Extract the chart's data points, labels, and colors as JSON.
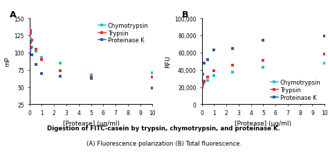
{
  "panel_A": {
    "title": "A",
    "xlabel": "[Protease] (μg/ml)",
    "ylabel": "mP",
    "xlim": [
      0,
      10
    ],
    "ylim": [
      25,
      150
    ],
    "yticks": [
      25,
      50,
      75,
      100,
      125,
      150
    ],
    "xticks": [
      0,
      1,
      2,
      3,
      4,
      5,
      6,
      7,
      8,
      9,
      10
    ],
    "series": {
      "Chymotrypsin": {
        "color": "#2abfbf",
        "x": [
          0.0,
          0.05,
          0.1,
          0.2,
          0.5,
          1.0,
          2.5,
          5.0,
          10.0
        ],
        "y": [
          110,
          120,
          115,
          108,
          102,
          93,
          85,
          68,
          71
        ]
      },
      "Trypsin": {
        "color": "#e8312a",
        "x": [
          0.0,
          0.05,
          0.1,
          0.2,
          0.5,
          1.0,
          2.5,
          5.0,
          10.0
        ],
        "y": [
          110,
          132,
          128,
          118,
          105,
          90,
          74,
          65,
          65
        ]
      },
      "Proteinase K": {
        "color": "#2c5aa0",
        "x": [
          0.0,
          0.05,
          0.1,
          0.2,
          0.5,
          1.0,
          2.5,
          5.0,
          10.0
        ],
        "y": [
          102,
          115,
          107,
          97,
          83,
          70,
          66,
          63,
          49
        ]
      }
    }
  },
  "panel_B": {
    "title": "B",
    "xlabel": "[Protease] (μg/ml)",
    "ylabel": "RFU",
    "xlim": [
      0,
      10
    ],
    "ylim": [
      0,
      100000
    ],
    "yticks": [
      0,
      20000,
      40000,
      60000,
      80000,
      100000
    ],
    "ytick_labels": [
      "0",
      "20,000",
      "40,000",
      "60,000",
      "80,000",
      "100,000"
    ],
    "xticks": [
      0,
      1,
      2,
      3,
      4,
      5,
      6,
      7,
      8,
      9,
      10
    ],
    "series": {
      "Chymotrypsin": {
        "color": "#2abfbf",
        "x": [
          0.0,
          0.05,
          0.1,
          0.2,
          0.5,
          1.0,
          2.5,
          5.0,
          10.0
        ],
        "y": [
          20000,
          22000,
          23000,
          25000,
          28000,
          33000,
          37000,
          43000,
          48000
        ]
      },
      "Trypsin": {
        "color": "#e8312a",
        "x": [
          0.0,
          0.05,
          0.1,
          0.2,
          0.5,
          1.0,
          2.5,
          5.0,
          10.0
        ],
        "y": [
          20000,
          22000,
          24000,
          27000,
          32000,
          39000,
          45000,
          51000,
          58000
        ]
      },
      "Proteinase K": {
        "color": "#2c5aa0",
        "x": [
          0.0,
          0.05,
          0.1,
          0.2,
          0.5,
          1.0,
          2.5,
          5.0,
          10.0
        ],
        "y": [
          20000,
          25000,
          35000,
          48000,
          52000,
          63000,
          65000,
          74000,
          79000
        ]
      }
    }
  },
  "caption_bold": "Digestion of FITC-casein by trypsin, chymotrypsin, and proteinase K.",
  "caption_normal": "(A) Fluorescence polarization (B) Total fluorescence.",
  "background_color": "#ffffff",
  "legend_fontsize": 6.0,
  "axis_fontsize": 6.5,
  "tick_fontsize": 5.5,
  "title_fontsize": 9
}
